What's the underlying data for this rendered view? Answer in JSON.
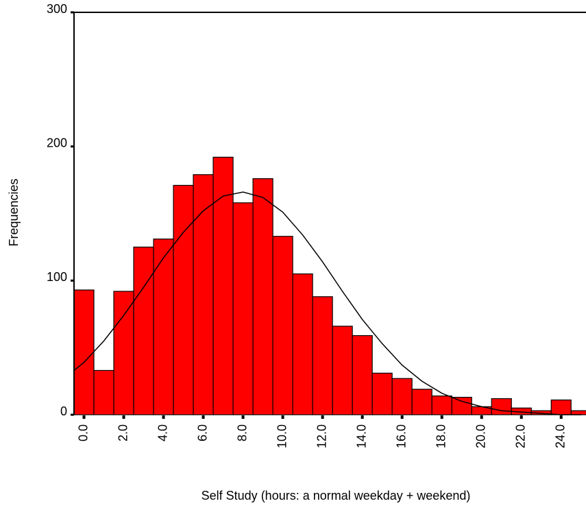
{
  "chart_data": {
    "type": "histogram",
    "x_label": "Self Study (hours: a normal weekday + weekend)",
    "y_label": "Frequencies",
    "bins": [
      -0.5,
      0.5,
      1.5,
      2.5,
      3.5,
      4.5,
      5.5,
      6.5,
      7.5,
      8.5,
      9.5,
      10.5,
      11.5,
      12.5,
      13.5,
      14.5,
      15.5,
      16.5,
      17.5,
      18.5,
      19.5,
      20.5,
      21.5,
      22.5,
      23.5,
      24.5,
      25.5
    ],
    "values": [
      93,
      33,
      92,
      125,
      131,
      171,
      179,
      192,
      158,
      176,
      133,
      105,
      88,
      66,
      59,
      31,
      27,
      19,
      14,
      13,
      6,
      12,
      5,
      3,
      11,
      3
    ],
    "color": "#ff0000",
    "curve": {
      "color": "#000000",
      "x": [
        -0.5,
        0,
        1,
        2,
        3,
        4,
        5,
        6,
        7,
        8,
        9,
        10,
        11,
        12,
        13,
        14,
        15,
        16,
        17,
        18,
        19,
        20,
        21,
        22,
        23,
        24,
        25
      ],
      "y": [
        33,
        39,
        55,
        74,
        95,
        117,
        136,
        152,
        163,
        166,
        162,
        151,
        134,
        114,
        92,
        71,
        53,
        37,
        25,
        16,
        10,
        6,
        3,
        2,
        1,
        0,
        0
      ]
    },
    "xlim": [
      -0.5,
      25.25
    ],
    "ylim": [
      0,
      300
    ],
    "xticks": [
      {
        "value": 0,
        "label": "0.0"
      },
      {
        "value": 2,
        "label": "2.0"
      },
      {
        "value": 4,
        "label": "4.0"
      },
      {
        "value": 6,
        "label": "6.0"
      },
      {
        "value": 8,
        "label": "8.0"
      },
      {
        "value": 10,
        "label": "10.0"
      },
      {
        "value": 12,
        "label": "12.0"
      },
      {
        "value": 14,
        "label": "14.0"
      },
      {
        "value": 16,
        "label": "16.0"
      },
      {
        "value": 18,
        "label": "18.0"
      },
      {
        "value": 20,
        "label": "20.0"
      },
      {
        "value": 22,
        "label": "22.0"
      },
      {
        "value": 24,
        "label": "24.0"
      }
    ],
    "yticks": [
      0,
      100,
      200,
      300
    ],
    "grid": false
  }
}
